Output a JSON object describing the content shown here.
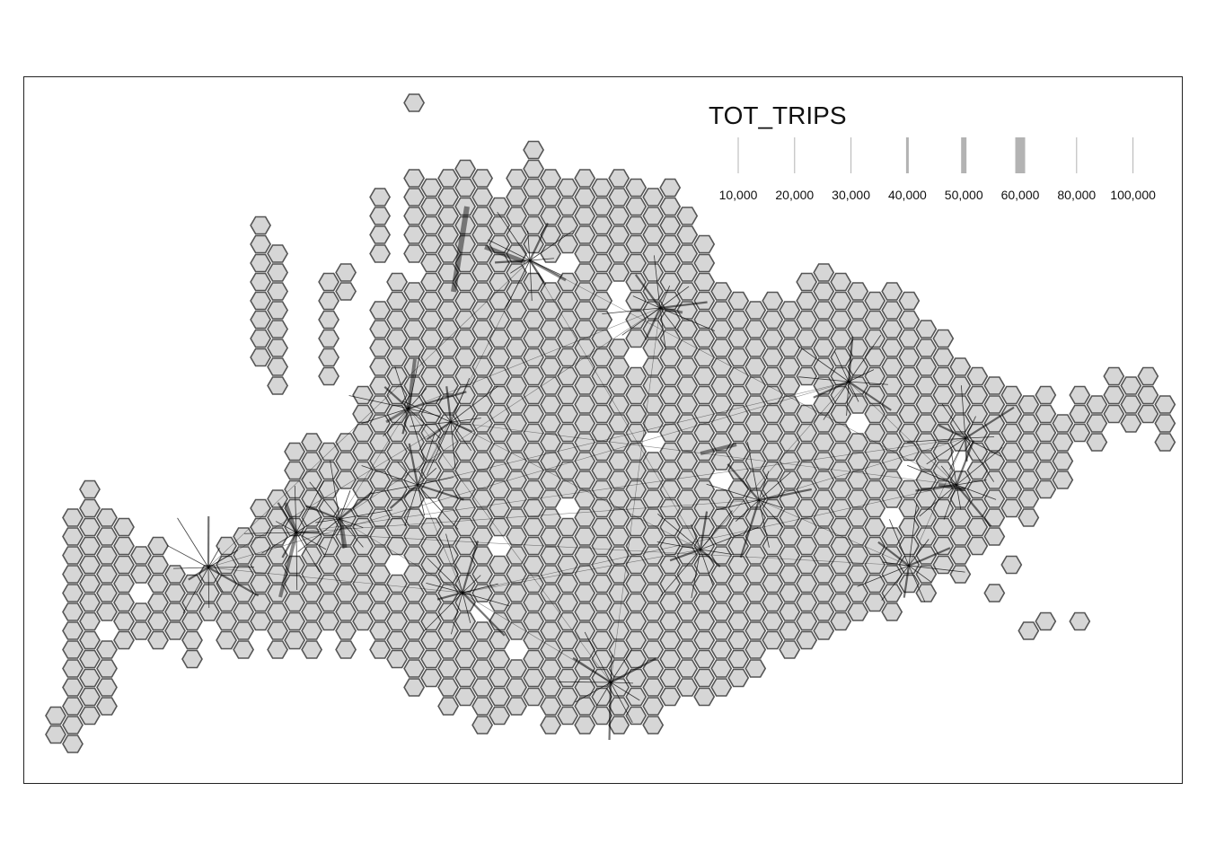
{
  "legend": {
    "title": "TOT_TRIPS",
    "entries": [
      {
        "label": "10,000",
        "width": 1
      },
      {
        "label": "20,000",
        "width": 1
      },
      {
        "label": "30,000",
        "width": 1
      },
      {
        "label": "40,000",
        "width": 3
      },
      {
        "label": "50,000",
        "width": 6
      },
      {
        "label": "60,000",
        "width": 11
      },
      {
        "label": "80,000",
        "width": 1
      },
      {
        "label": "100,000",
        "width": 1
      }
    ]
  },
  "colors": {
    "hex_fill": "#d6d6d6",
    "hex_stroke": "#555555",
    "legend_line": "#b3b3b3",
    "flow_line": "#000000",
    "frame": "#222222"
  }
}
